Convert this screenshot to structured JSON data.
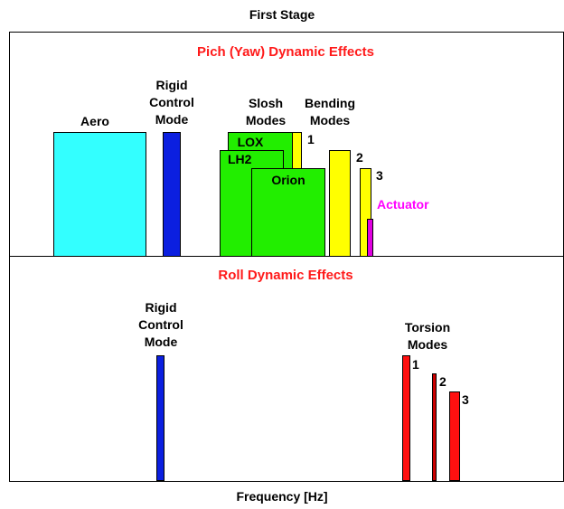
{
  "title": "First Stage",
  "xlabel": "Frequency [Hz]",
  "pitch_panel": {
    "title": "Pich (Yaw) Dynamic Effects",
    "aero_label": "Aero",
    "rigid_label": [
      "Rigid",
      "Control",
      "Mode"
    ],
    "slosh_label": [
      "Slosh",
      "Modes"
    ],
    "bending_label": [
      "Bending",
      "Modes"
    ],
    "lox_label": "LOX",
    "lh2_label": "LH2",
    "orion_label": "Orion",
    "actuator_label": "Actuator",
    "bending_numbers": [
      "1",
      "2",
      "3"
    ]
  },
  "roll_panel": {
    "title": "Roll Dynamic Effects",
    "rigid_label": [
      "Rigid",
      "Control",
      "Mode"
    ],
    "torsion_label": [
      "Torsion",
      "Modes"
    ],
    "torsion_numbers": [
      "1",
      "2",
      "3"
    ]
  },
  "colors": {
    "aero": "#33ffff",
    "rigid": "#0b1fe0",
    "slosh": "#22ee00",
    "bending": "#ffff00",
    "actuator": "#e000e0",
    "torsion": "#ff1010",
    "title_red": "#ff1a1a"
  }
}
